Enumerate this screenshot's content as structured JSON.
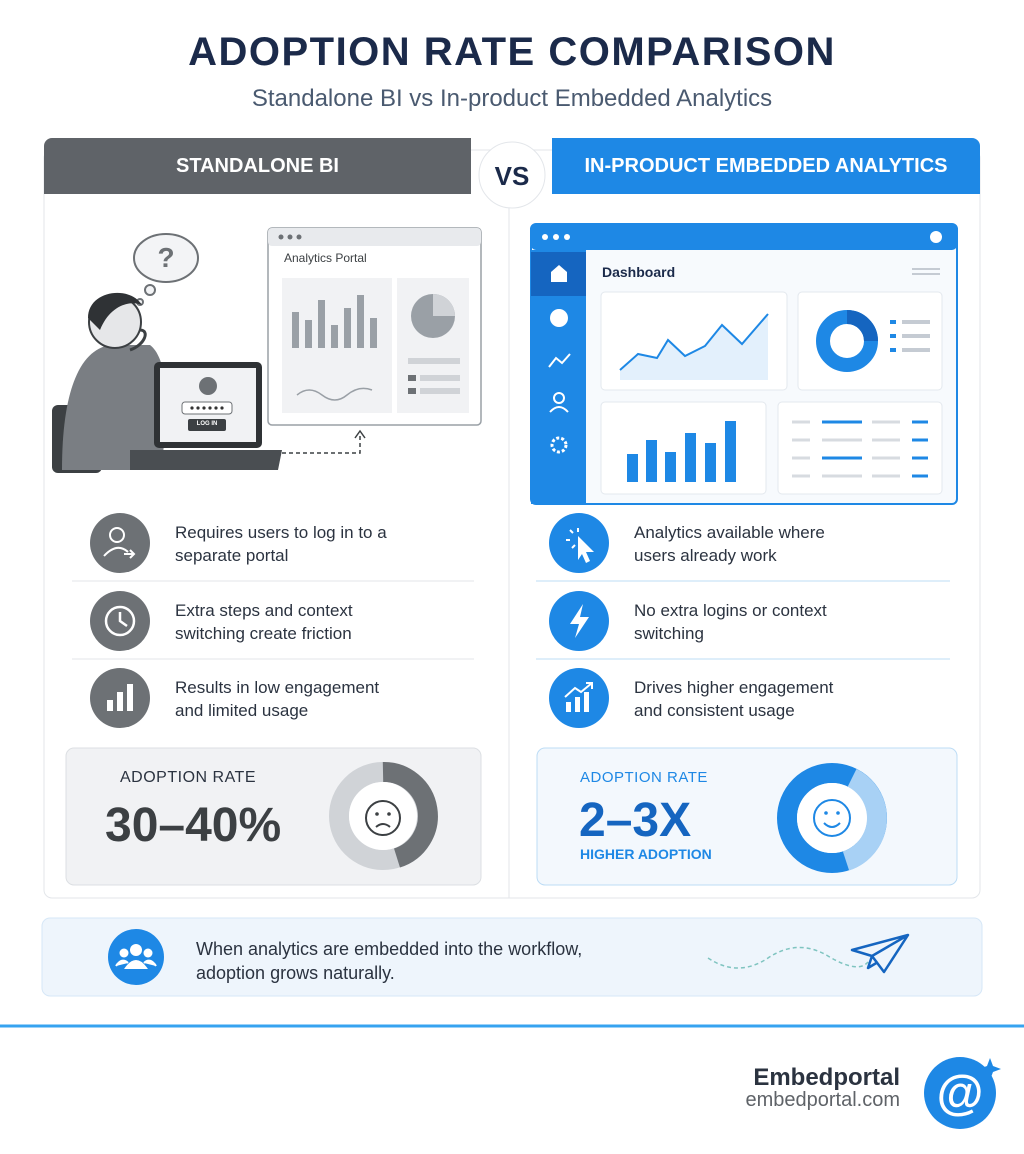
{
  "header": {
    "title": "ADOPTION RATE COMPARISON",
    "subtitle": "Standalone BI vs In-product Embedded Analytics"
  },
  "vs": "VS",
  "left": {
    "heading": "STANDALONE BI",
    "illustration": {
      "bubble": "?",
      "window_title": "Analytics Portal",
      "button": "LOG IN"
    },
    "points": [
      "Requires users to log in to a separate portal",
      "Extra steps and context switching create friction",
      "Results in low engagement and limited usage"
    ],
    "adoption": {
      "label": "ADOPTION RATE",
      "value": "30–40%"
    }
  },
  "right": {
    "heading": "IN-PRODUCT EMBEDDED ANALYTICS",
    "illustration": {
      "window_title": "Dashboard"
    },
    "points": [
      "Analytics available where users already work",
      "No extra logins or context switching",
      "Drives higher engagement and consistent usage"
    ],
    "adoption": {
      "label": "ADOPTION RATE",
      "value": "2–3X",
      "note": "HIGHER ADOPTION"
    }
  },
  "footer_note": "When analytics are embedded into the workflow, adoption grows naturally.",
  "brand": {
    "name": "Embedportal",
    "url": "embedportal.com",
    "logo": "@"
  }
}
